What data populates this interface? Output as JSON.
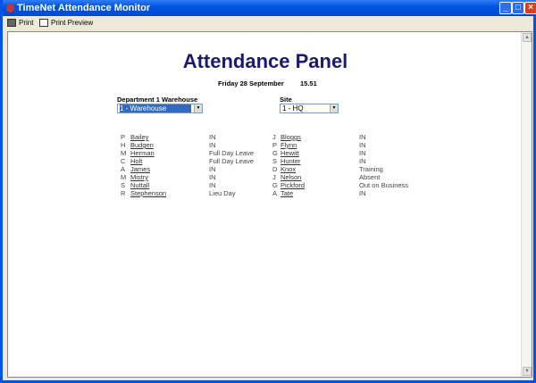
{
  "window": {
    "title": "TimeNet Attendance Monitor",
    "buttons": [
      "_",
      "□",
      "×"
    ]
  },
  "toolbar": {
    "print": "Print",
    "print_preview": "Print Preview"
  },
  "panel": {
    "title": "Attendance Panel",
    "date": "Friday 28 September",
    "time": "15.51",
    "department_label": "Department  1 Warehouse",
    "department_value": "1 - Warehouse",
    "site_label": "Site",
    "site_value": "1 - HQ"
  },
  "left": [
    {
      "initial": "P",
      "name": "Bailey",
      "status": "IN"
    },
    {
      "initial": "H",
      "name": "Budgen",
      "status": "IN"
    },
    {
      "initial": "M",
      "name": "Herman",
      "status": "Full Day Leave"
    },
    {
      "initial": "C",
      "name": "Holt",
      "status": "Full Day Leave"
    },
    {
      "initial": "A",
      "name": "James",
      "status": "IN"
    },
    {
      "initial": "M",
      "name": "Mistry",
      "status": "IN"
    },
    {
      "initial": "S",
      "name": "Nuttall",
      "status": "IN"
    },
    {
      "initial": "R",
      "name": "Stephenson",
      "status": "Lieu Day"
    }
  ],
  "right": [
    {
      "initial": "J",
      "name": "Bloggs",
      "status": "IN"
    },
    {
      "initial": "P",
      "name": "Flynn",
      "status": "IN"
    },
    {
      "initial": "G",
      "name": "Hewitt",
      "status": "IN"
    },
    {
      "initial": "S",
      "name": "Hunter",
      "status": "IN"
    },
    {
      "initial": "D",
      "name": "Knox",
      "status": "Training"
    },
    {
      "initial": "J",
      "name": "Nelson",
      "status": "Absent"
    },
    {
      "initial": "G",
      "name": "Pickford",
      "status": "Out on Business"
    },
    {
      "initial": "A",
      "name": "Tate",
      "status": "IN"
    }
  ]
}
